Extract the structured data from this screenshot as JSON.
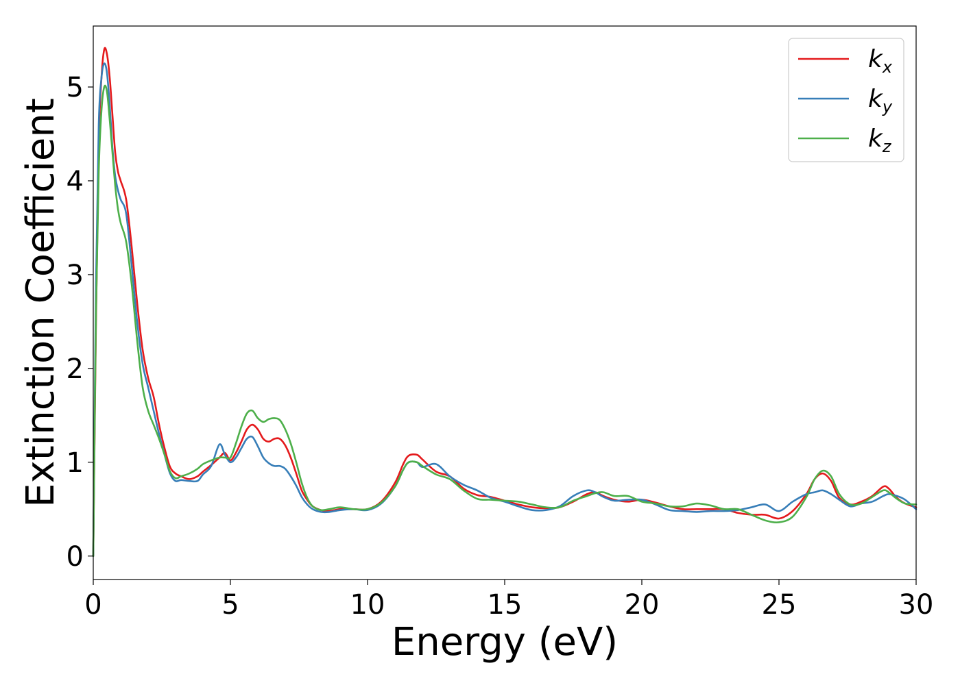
{
  "chart_data": {
    "type": "line",
    "xlabel": "Energy (eV)",
    "ylabel": "Extinction Coefficient",
    "xlim": [
      0,
      30
    ],
    "ylim": [
      -0.25,
      5.65
    ],
    "xticks": [
      0,
      5,
      10,
      15,
      20,
      25,
      30
    ],
    "yticks": [
      0,
      1,
      2,
      3,
      4,
      5
    ],
    "grid": false,
    "legend_position": "top-right",
    "series": [
      {
        "name": "k",
        "subscript": "x",
        "color": "#e41a1c",
        "x": [
          0,
          0.1,
          0.2,
          0.3,
          0.4,
          0.5,
          0.6,
          0.7,
          0.8,
          0.9,
          1.0,
          1.2,
          1.4,
          1.6,
          1.8,
          2.0,
          2.2,
          2.4,
          2.6,
          2.8,
          3.0,
          3.2,
          3.5,
          3.8,
          4.0,
          4.3,
          4.6,
          4.8,
          5.0,
          5.2,
          5.4,
          5.6,
          5.8,
          6.0,
          6.2,
          6.4,
          6.6,
          6.8,
          7.0,
          7.2,
          7.4,
          7.6,
          7.8,
          8.0,
          8.3,
          8.6,
          9.0,
          9.5,
          10.0,
          10.5,
          11.0,
          11.3,
          11.5,
          11.8,
          12.0,
          12.5,
          13.0,
          13.5,
          14.0,
          14.5,
          15.0,
          15.5,
          16.0,
          16.5,
          17.0,
          17.5,
          18.0,
          18.3,
          18.6,
          19.0,
          19.5,
          20.0,
          20.5,
          21.0,
          21.5,
          22.0,
          22.5,
          23.0,
          23.5,
          24.0,
          24.5,
          25.0,
          25.5,
          26.0,
          26.3,
          26.6,
          26.9,
          27.2,
          27.6,
          28.0,
          28.4,
          28.8,
          29.0,
          29.3,
          29.6,
          30.0
        ],
        "values": [
          0,
          2.5,
          4.4,
          5.1,
          5.4,
          5.35,
          5.1,
          4.7,
          4.3,
          4.1,
          4.0,
          3.8,
          3.3,
          2.7,
          2.2,
          1.9,
          1.7,
          1.4,
          1.15,
          0.95,
          0.88,
          0.85,
          0.82,
          0.85,
          0.9,
          0.97,
          1.05,
          1.1,
          1.02,
          1.1,
          1.22,
          1.35,
          1.4,
          1.35,
          1.25,
          1.22,
          1.25,
          1.25,
          1.18,
          1.05,
          0.88,
          0.7,
          0.6,
          0.53,
          0.49,
          0.48,
          0.5,
          0.5,
          0.5,
          0.58,
          0.78,
          0.98,
          1.07,
          1.08,
          1.03,
          0.9,
          0.85,
          0.72,
          0.65,
          0.63,
          0.59,
          0.55,
          0.52,
          0.51,
          0.52,
          0.58,
          0.66,
          0.68,
          0.64,
          0.6,
          0.58,
          0.6,
          0.57,
          0.53,
          0.5,
          0.5,
          0.5,
          0.5,
          0.46,
          0.44,
          0.44,
          0.4,
          0.48,
          0.66,
          0.82,
          0.88,
          0.8,
          0.62,
          0.55,
          0.58,
          0.64,
          0.74,
          0.72,
          0.62,
          0.56,
          0.52
        ]
      },
      {
        "name": "k",
        "subscript": "y",
        "color": "#377eb8",
        "x": [
          0,
          0.1,
          0.2,
          0.3,
          0.4,
          0.5,
          0.6,
          0.7,
          0.8,
          0.9,
          1.0,
          1.2,
          1.4,
          1.6,
          1.8,
          2.0,
          2.2,
          2.4,
          2.6,
          2.8,
          3.0,
          3.2,
          3.5,
          3.8,
          4.0,
          4.3,
          4.6,
          4.8,
          5.0,
          5.2,
          5.4,
          5.6,
          5.8,
          6.0,
          6.2,
          6.4,
          6.6,
          6.8,
          7.0,
          7.2,
          7.4,
          7.6,
          7.8,
          8.0,
          8.3,
          8.6,
          9.0,
          9.5,
          10.0,
          10.5,
          11.0,
          11.3,
          11.5,
          11.8,
          12.0,
          12.5,
          13.0,
          13.5,
          14.0,
          14.5,
          15.0,
          15.5,
          16.0,
          16.5,
          17.0,
          17.5,
          18.0,
          18.3,
          18.6,
          19.0,
          19.5,
          20.0,
          20.5,
          21.0,
          21.5,
          22.0,
          22.5,
          23.0,
          23.5,
          24.0,
          24.5,
          25.0,
          25.5,
          26.0,
          26.3,
          26.6,
          26.9,
          27.2,
          27.6,
          28.0,
          28.4,
          28.8,
          29.0,
          29.3,
          29.6,
          30.0
        ],
        "values": [
          0,
          2.9,
          4.6,
          5.1,
          5.25,
          5.15,
          4.8,
          4.35,
          4.05,
          3.9,
          3.8,
          3.65,
          3.1,
          2.5,
          2.05,
          1.8,
          1.55,
          1.3,
          1.08,
          0.88,
          0.8,
          0.81,
          0.8,
          0.8,
          0.87,
          0.96,
          1.19,
          1.08,
          1.0,
          1.05,
          1.15,
          1.25,
          1.27,
          1.17,
          1.05,
          0.99,
          0.96,
          0.96,
          0.93,
          0.85,
          0.75,
          0.63,
          0.55,
          0.5,
          0.47,
          0.47,
          0.49,
          0.5,
          0.49,
          0.56,
          0.74,
          0.92,
          1.0,
          1.0,
          0.95,
          0.98,
          0.85,
          0.76,
          0.7,
          0.62,
          0.58,
          0.53,
          0.49,
          0.49,
          0.53,
          0.64,
          0.7,
          0.68,
          0.63,
          0.59,
          0.6,
          0.6,
          0.55,
          0.49,
          0.48,
          0.47,
          0.48,
          0.48,
          0.49,
          0.52,
          0.55,
          0.48,
          0.58,
          0.66,
          0.68,
          0.7,
          0.66,
          0.6,
          0.53,
          0.56,
          0.58,
          0.64,
          0.66,
          0.64,
          0.6,
          0.5
        ]
      },
      {
        "name": "k",
        "subscript": "z",
        "color": "#4daf4a",
        "x": [
          0,
          0.1,
          0.2,
          0.3,
          0.4,
          0.5,
          0.6,
          0.7,
          0.8,
          0.9,
          1.0,
          1.2,
          1.4,
          1.6,
          1.8,
          2.0,
          2.2,
          2.4,
          2.6,
          2.8,
          3.0,
          3.2,
          3.5,
          3.8,
          4.0,
          4.3,
          4.6,
          4.8,
          5.0,
          5.2,
          5.4,
          5.6,
          5.8,
          6.0,
          6.2,
          6.4,
          6.6,
          6.8,
          7.0,
          7.2,
          7.4,
          7.6,
          7.8,
          8.0,
          8.3,
          8.6,
          9.0,
          9.5,
          10.0,
          10.5,
          11.0,
          11.3,
          11.5,
          11.8,
          12.0,
          12.5,
          13.0,
          13.5,
          14.0,
          14.5,
          15.0,
          15.5,
          16.0,
          16.5,
          17.0,
          17.5,
          18.0,
          18.3,
          18.6,
          19.0,
          19.5,
          20.0,
          20.5,
          21.0,
          21.5,
          22.0,
          22.5,
          23.0,
          23.5,
          24.0,
          24.5,
          25.0,
          25.5,
          26.0,
          26.3,
          26.6,
          26.9,
          27.2,
          27.6,
          28.0,
          28.4,
          28.8,
          29.0,
          29.3,
          29.6,
          30.0
        ],
        "values": [
          0,
          2.6,
          4.1,
          4.75,
          5.0,
          4.95,
          4.65,
          4.3,
          3.95,
          3.7,
          3.55,
          3.35,
          2.9,
          2.3,
          1.8,
          1.55,
          1.4,
          1.25,
          1.08,
          0.9,
          0.83,
          0.85,
          0.88,
          0.93,
          0.98,
          1.02,
          1.05,
          1.05,
          1.05,
          1.2,
          1.38,
          1.52,
          1.55,
          1.47,
          1.43,
          1.46,
          1.47,
          1.45,
          1.35,
          1.2,
          1.0,
          0.78,
          0.62,
          0.53,
          0.49,
          0.5,
          0.52,
          0.5,
          0.5,
          0.57,
          0.74,
          0.92,
          1.0,
          1.0,
          0.96,
          0.87,
          0.82,
          0.7,
          0.61,
          0.6,
          0.59,
          0.58,
          0.55,
          0.52,
          0.52,
          0.59,
          0.64,
          0.67,
          0.68,
          0.64,
          0.64,
          0.58,
          0.56,
          0.53,
          0.53,
          0.56,
          0.54,
          0.5,
          0.5,
          0.44,
          0.38,
          0.36,
          0.42,
          0.63,
          0.82,
          0.91,
          0.85,
          0.66,
          0.55,
          0.56,
          0.63,
          0.7,
          0.68,
          0.61,
          0.56,
          0.55
        ]
      }
    ]
  }
}
